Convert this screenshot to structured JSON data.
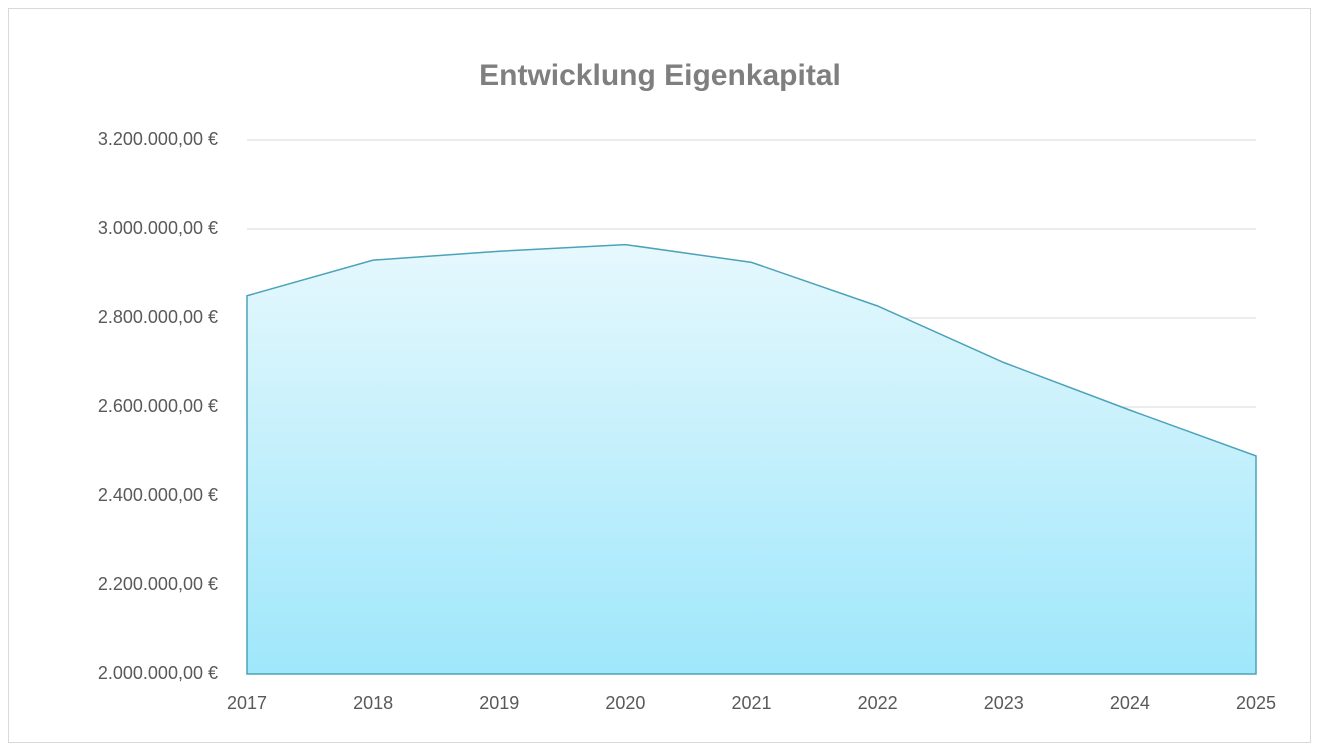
{
  "chart_data": {
    "type": "area",
    "title": "Entwicklung Eigenkapital",
    "categories": [
      "2017",
      "2018",
      "2019",
      "2020",
      "2021",
      "2022",
      "2023",
      "2024",
      "2025"
    ],
    "series": [
      {
        "name": "Eigenkapital",
        "color": "#4aa3b8",
        "values": [
          2850000,
          2930000,
          2950000,
          2965000,
          2925000,
          2827000,
          2700000,
          2593000,
          2490000
        ]
      }
    ],
    "ylim": [
      2000000,
      3200000
    ],
    "yticks": [
      {
        "value": 2000000,
        "label": "2.000.000,00 €"
      },
      {
        "value": 2200000,
        "label": "2.200.000,00 €"
      },
      {
        "value": 2400000,
        "label": "2.400.000,00 €"
      },
      {
        "value": 2600000,
        "label": "2.600.000,00 €"
      },
      {
        "value": 2800000,
        "label": "2.800.000,00 €"
      },
      {
        "value": 3000000,
        "label": "3.000.000,00 €"
      },
      {
        "value": 3200000,
        "label": "3.200.000,00 €"
      }
    ],
    "grid": true
  }
}
